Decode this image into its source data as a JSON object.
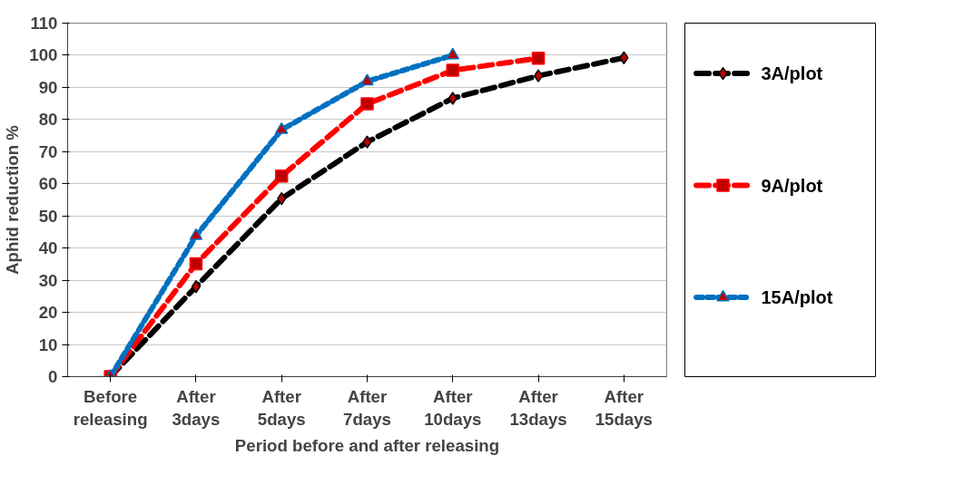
{
  "chart_data": {
    "type": "line",
    "xlabel": "Period before and after releasing",
    "ylabel": "Aphid reduction %",
    "categories": [
      "Before releasing",
      "After 3days",
      "After 5days",
      "After 7days",
      "After 10days",
      "After 13days",
      "After 15days"
    ],
    "series": [
      {
        "name": "3A/plot",
        "color": "#000000",
        "marker": "diamond",
        "line_style": "dashed",
        "values": [
          0,
          28.0,
          55.4,
          73.0,
          86.6,
          93.6,
          99.2
        ]
      },
      {
        "name": "9A/plot",
        "color": "#ff0000",
        "marker": "square",
        "line_style": "dashed",
        "values": [
          0,
          35.1,
          62.4,
          84.9,
          95.3,
          99.1,
          null
        ]
      },
      {
        "name": "15A/plot",
        "color": "#0070c0",
        "marker": "triangle",
        "line_style": "dotted",
        "values": [
          0,
          43.8,
          76.8,
          91.9,
          100,
          null,
          null
        ]
      }
    ],
    "ylim": [
      0,
      110
    ],
    "yticks": [
      0,
      10,
      20,
      30,
      40,
      50,
      60,
      70,
      80,
      90,
      100,
      110
    ],
    "grid": "y",
    "legend": "right"
  }
}
